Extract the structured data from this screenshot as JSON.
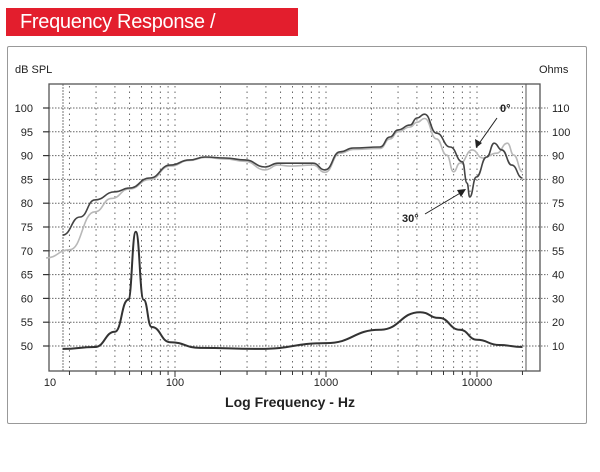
{
  "header": {
    "title": "Frequency Response / Impedance",
    "color": "#e31e2d"
  },
  "chart_data": {
    "type": "line",
    "title": "Frequency Response / Impedance",
    "xlabel": "Log Frequency - Hz",
    "ylabel_left": "dB SPL",
    "ylabel_right": "Ohms",
    "x_scale": "log",
    "x_ticks": [
      10,
      100,
      1000,
      10000
    ],
    "x_tick_labels": [
      "10",
      "100",
      "1000",
      "10000"
    ],
    "y_ticks_left": [
      100,
      95,
      90,
      85,
      80,
      75,
      70,
      65,
      60,
      55,
      50
    ],
    "y_tick_labels_left": [
      "100",
      "95",
      "90",
      "85",
      "80",
      "75",
      "70",
      "65",
      "60",
      "55",
      "50"
    ],
    "y_tick_labels_right": [
      "110",
      "100",
      "90",
      "80",
      "75",
      "60",
      "55",
      "40",
      "30",
      "20",
      "10"
    ],
    "ylim_left": [
      45,
      105
    ],
    "grid": true,
    "annotations": [
      {
        "text": "0°"
      },
      {
        "text": "30°"
      }
    ],
    "series": [
      {
        "color": "#444444",
        "axis": "left",
        "x": [
          18,
          23.5,
          29.5,
          40,
          50,
          68,
          93,
          125,
          158,
          214,
          290,
          395,
          480,
          578,
          820,
          985,
          1240,
          1510,
          2280,
          2650,
          3000,
          3600,
          4000,
          4500,
          5400,
          6650,
          8000,
          8600,
          8950,
          9900,
          11600,
          13000,
          14600,
          17000,
          20000
        ],
        "y": [
          73.3,
          77.1,
          80.7,
          82.4,
          83.2,
          85.3,
          88.0,
          89.1,
          89.7,
          89.5,
          89.1,
          87.6,
          88.4,
          88.4,
          88.4,
          87.0,
          90.8,
          91.6,
          91.8,
          93.9,
          95.4,
          96.4,
          97.9,
          98.7,
          94.7,
          91.8,
          88.7,
          84.2,
          81.3,
          85.5,
          89.7,
          92.6,
          91.2,
          88.0,
          85.3
        ]
      },
      {
        "color": "#b8b8b8",
        "axis": "left",
        "x": [
          14,
          20,
          29.5,
          38,
          50,
          68,
          93,
          125,
          158,
          214,
          290,
          395,
          480,
          578,
          820,
          985,
          1240,
          1510,
          2280,
          2650,
          3000,
          3600,
          4000,
          4500,
          5400,
          6300,
          7000,
          7700,
          9300,
          10900,
          13500,
          15900,
          17500,
          20000
        ],
        "y": [
          68.5,
          70.2,
          78.2,
          81.0,
          83.0,
          85.0,
          87.8,
          89.0,
          89.6,
          89.3,
          88.8,
          87.0,
          88.0,
          87.8,
          88.0,
          86.5,
          90.5,
          91.3,
          91.5,
          93.5,
          95.0,
          96.0,
          97.0,
          97.8,
          93.5,
          90.1,
          86.6,
          88.4,
          91.2,
          89.5,
          90.5,
          92.6,
          90.1,
          86.6
        ]
      },
      {
        "color": "#333333",
        "axis": "right",
        "x": [
          18,
          29.5,
          40,
          49,
          55,
          62,
          70,
          93,
          146,
          365,
          1000,
          2280,
          4200,
          5600,
          7700,
          10000,
          14000,
          20000
        ],
        "y": [
          8.8,
          9.6,
          16,
          29.4,
          59,
          29.4,
          18,
          11.6,
          9.2,
          8.8,
          11.2,
          16.8,
          24.2,
          21.8,
          16.8,
          12.6,
          10.4,
          9.6
        ]
      }
    ]
  }
}
